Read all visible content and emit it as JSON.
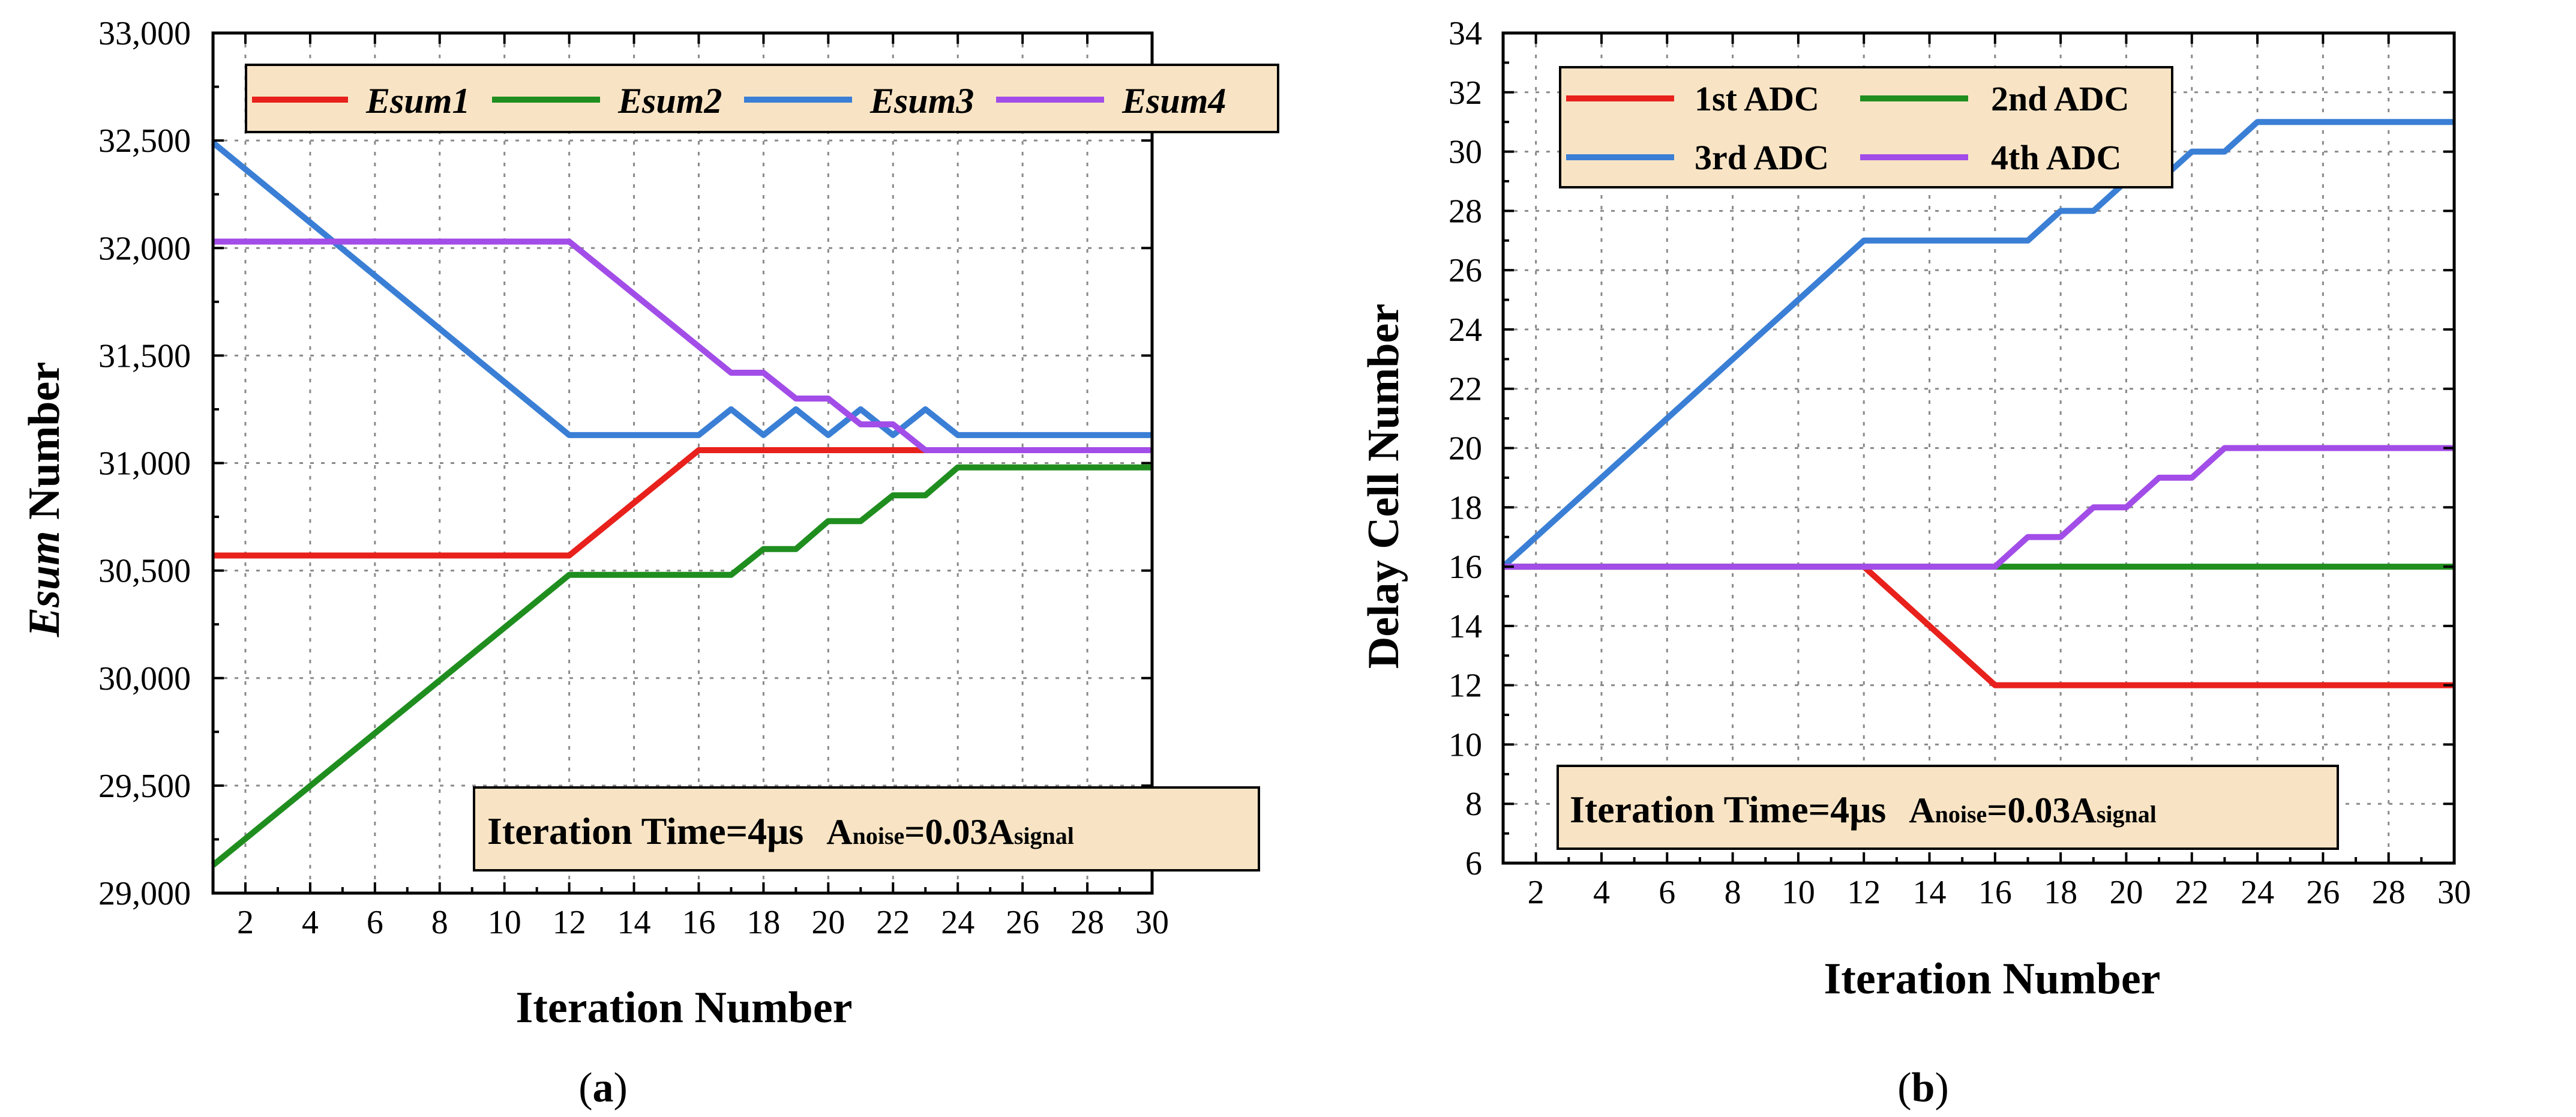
{
  "chart_data": [
    {
      "id": "a",
      "type": "line",
      "panel_label": "a",
      "xlabel": "Iteration Number",
      "ylabel_italic": "Esum",
      "ylabel_rest": " Number",
      "xlim": [
        1,
        30
      ],
      "ylim": [
        29000,
        33000
      ],
      "xticks": [
        2,
        4,
        6,
        8,
        10,
        12,
        14,
        16,
        18,
        20,
        22,
        24,
        26,
        28,
        30
      ],
      "yticks": [
        29000,
        29500,
        30000,
        30500,
        31000,
        31500,
        32000,
        32500,
        33000
      ],
      "ytick_labels": [
        "29,000",
        "29,500",
        "30,000",
        "30,500",
        "31,000",
        "31,500",
        "32,000",
        "32,500",
        "33,000"
      ],
      "legend_italic": true,
      "legend_position": "top",
      "annotation": {
        "main": "Iteration Time=4μs",
        "a1": "A",
        "s1": "noise",
        "mid": "=0.03A",
        "s2": "signal"
      },
      "annotation_position": "bottom-right",
      "series": [
        {
          "name": "Esum1",
          "color": "#e8211c",
          "x": [
            1,
            12,
            16,
            30
          ],
          "y": [
            30570,
            30570,
            31060,
            31060
          ]
        },
        {
          "name": "Esum2",
          "color": "#1f8e1f",
          "x": [
            1,
            12,
            17,
            18,
            19,
            20,
            21,
            22,
            23,
            24,
            30
          ],
          "y": [
            29130,
            30480,
            30480,
            30600,
            30600,
            30730,
            30730,
            30850,
            30850,
            30980,
            30980
          ]
        },
        {
          "name": "Esum3",
          "color": "#3a7fd5",
          "x": [
            1,
            12,
            16,
            17,
            18,
            19,
            20,
            21,
            22,
            23,
            24,
            30
          ],
          "y": [
            32490,
            31130,
            31130,
            31250,
            31130,
            31250,
            31130,
            31250,
            31130,
            31250,
            31130,
            31130
          ]
        },
        {
          "name": "Esum4",
          "color": "#a24de8",
          "x": [
            1,
            12,
            17,
            18,
            19,
            20,
            21,
            22,
            23,
            30
          ],
          "y": [
            32030,
            32030,
            31420,
            31420,
            31300,
            31300,
            31180,
            31180,
            31060,
            31060
          ]
        }
      ]
    },
    {
      "id": "b",
      "type": "line",
      "panel_label": "b",
      "xlabel": "Iteration Number",
      "ylabel": "Delay Cell Number",
      "xlim": [
        1,
        30
      ],
      "ylim": [
        6,
        34
      ],
      "xticks": [
        2,
        4,
        6,
        8,
        10,
        12,
        14,
        16,
        18,
        20,
        22,
        24,
        26,
        28,
        30
      ],
      "yticks": [
        6,
        8,
        10,
        12,
        14,
        16,
        18,
        20,
        22,
        24,
        26,
        28,
        30,
        32,
        34
      ],
      "ytick_labels": [
        "6",
        "8",
        "10",
        "12",
        "14",
        "16",
        "18",
        "20",
        "22",
        "24",
        "26",
        "28",
        "30",
        "32",
        "34"
      ],
      "legend_italic": false,
      "legend_position": "top-left",
      "annotation": {
        "main": "Iteration Time=4μs",
        "a1": "A",
        "s1": "noise",
        "mid": "=0.03A",
        "s2": "signal"
      },
      "annotation_position": "bottom-left",
      "series": [
        {
          "name": "1st ADC",
          "color": "#e8211c",
          "x": [
            1,
            12,
            16,
            30
          ],
          "y": [
            16,
            16,
            12,
            12
          ]
        },
        {
          "name": "2nd ADC",
          "color": "#1f8e1f",
          "x": [
            1,
            30
          ],
          "y": [
            16,
            16
          ]
        },
        {
          "name": "3rd ADC",
          "color": "#3a7fd5",
          "x": [
            1,
            12,
            17,
            18,
            19,
            20,
            21,
            22,
            23,
            24,
            30
          ],
          "y": [
            16,
            27,
            27,
            28,
            28,
            29,
            29,
            30,
            30,
            31,
            31
          ]
        },
        {
          "name": "4th ADC",
          "color": "#a24de8",
          "x": [
            1,
            16,
            17,
            18,
            19,
            20,
            21,
            22,
            23,
            30
          ],
          "y": [
            16,
            16,
            17,
            17,
            18,
            18,
            19,
            19,
            20,
            20
          ]
        }
      ]
    }
  ]
}
